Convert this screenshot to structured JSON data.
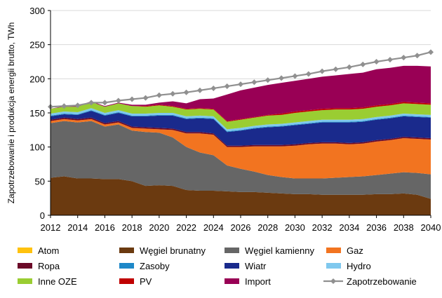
{
  "chart_data": {
    "type": "area",
    "title": "",
    "xlabel": "",
    "ylabel": "Zapotrzebowanie i produkcja energii brutto, TWh",
    "ylim": [
      0,
      300
    ],
    "yticks": [
      0,
      50,
      100,
      150,
      200,
      250,
      300
    ],
    "xlim": [
      2012,
      2040
    ],
    "xticks": [
      2012,
      2014,
      2016,
      2018,
      2020,
      2022,
      2024,
      2026,
      2028,
      2030,
      2032,
      2034,
      2036,
      2038,
      2040
    ],
    "grid": "horizontal",
    "legend_position": "bottom",
    "x": [
      2012,
      2013,
      2014,
      2015,
      2016,
      2017,
      2018,
      2019,
      2020,
      2021,
      2022,
      2023,
      2024,
      2025,
      2026,
      2027,
      2028,
      2029,
      2030,
      2031,
      2032,
      2033,
      2034,
      2035,
      2036,
      2037,
      2038,
      2039,
      2040
    ],
    "series": [
      {
        "name": "Węgiel brunatny",
        "color": "#6b3a10",
        "values": [
          55,
          57,
          54,
          54,
          53,
          53,
          50,
          43,
          44,
          43,
          37,
          36,
          36,
          35,
          34,
          34,
          33,
          32,
          31,
          31,
          30,
          30,
          30,
          30,
          31,
          31,
          32,
          30,
          24
        ]
      },
      {
        "name": "Węgiel kamienny",
        "color": "#666666",
        "values": [
          80,
          81,
          82,
          84,
          77,
          80,
          74,
          79,
          77,
          71,
          63,
          56,
          52,
          38,
          34,
          30,
          26,
          24,
          23,
          23,
          24,
          25,
          26,
          27,
          28,
          30,
          31,
          32,
          36
        ]
      },
      {
        "name": "Gaz",
        "color": "#f27420",
        "values": [
          3,
          3,
          3,
          3,
          3,
          3,
          4,
          5,
          5,
          11,
          20,
          28,
          30,
          27,
          32,
          37,
          42,
          45,
          48,
          50,
          51,
          50,
          48,
          48,
          49,
          49,
          50,
          50,
          51
        ]
      },
      {
        "name": "Ropa",
        "color": "#6b0a28",
        "values": [
          2,
          2,
          2,
          2,
          2,
          2,
          2,
          2,
          2,
          2,
          2,
          2,
          2,
          2,
          2,
          2,
          2,
          2,
          2,
          2,
          2,
          2,
          2,
          2,
          2,
          2,
          2,
          2,
          2
        ]
      },
      {
        "name": "Wiatr",
        "color": "#1a2a8c",
        "values": [
          5,
          5,
          6,
          10,
          11,
          12,
          15,
          16,
          18,
          19,
          19,
          20,
          21,
          20,
          22,
          24,
          26,
          27,
          28,
          28,
          29,
          29,
          30,
          30,
          30,
          30,
          30,
          30,
          30
        ]
      },
      {
        "name": "Zasoby",
        "color": "#1e88c8",
        "values": [
          1,
          1,
          1,
          1,
          1,
          1,
          1,
          1,
          1,
          1,
          1,
          1,
          1,
          1,
          1,
          1,
          1,
          1,
          1,
          1,
          1,
          1,
          1,
          1,
          1,
          1,
          1,
          1,
          1
        ]
      },
      {
        "name": "Hydro",
        "color": "#7fc8ee",
        "values": [
          3,
          3,
          3,
          3,
          3,
          3,
          3,
          3,
          3,
          3,
          3,
          3,
          3,
          3,
          3,
          3,
          3,
          3,
          3,
          3,
          3,
          3,
          3,
          3,
          3,
          3,
          3,
          3,
          3
        ]
      },
      {
        "name": "Inne OZE",
        "color": "#9acd32",
        "values": [
          7,
          7,
          8,
          9,
          9,
          10,
          11,
          10,
          11,
          9,
          10,
          10,
          10,
          11,
          12,
          12,
          13,
          13,
          14,
          14,
          14,
          15,
          15,
          15,
          15,
          15,
          15,
          15,
          15
        ]
      },
      {
        "name": "PV",
        "color": "#c00000",
        "values": [
          0,
          0,
          0,
          0,
          0,
          0,
          0,
          1,
          1,
          1,
          1,
          1,
          1,
          1,
          1,
          1,
          1,
          2,
          2,
          2,
          2,
          2,
          2,
          2,
          2,
          2,
          2,
          2,
          2
        ]
      },
      {
        "name": "Atom",
        "color": "#ffc20e",
        "values": [
          0,
          0,
          0,
          0,
          0,
          0,
          0,
          0,
          0,
          0,
          0,
          0,
          0,
          0,
          0,
          0,
          0,
          0,
          0,
          0,
          0,
          0,
          0,
          0,
          0,
          0,
          0,
          0,
          0
        ]
      },
      {
        "name": "Import",
        "color": "#990055",
        "values": [
          0,
          1,
          1,
          1,
          1,
          1,
          2,
          2,
          3,
          7,
          8,
          13,
          15,
          39,
          42,
          43,
          44,
          45,
          45,
          46,
          47,
          48,
          50,
          51,
          53,
          53,
          53,
          54,
          54
        ]
      }
    ],
    "line_series": {
      "name": "Zapotrzebowanie",
      "color": "#909090",
      "values": [
        159,
        160,
        161,
        165,
        165,
        168,
        170,
        172,
        176,
        178,
        180,
        183,
        186,
        189,
        192,
        195,
        198,
        201,
        204,
        207,
        211,
        214,
        217,
        221,
        225,
        228,
        231,
        234,
        239
      ]
    },
    "legend": [
      "Atom",
      "Węgiel brunatny",
      "Węgiel kamienny",
      "Gaz",
      "Ropa",
      "Zasoby",
      "Wiatr",
      "Hydro",
      "Inne OZE",
      "PV",
      "Import",
      "Zapotrzebowanie"
    ]
  }
}
